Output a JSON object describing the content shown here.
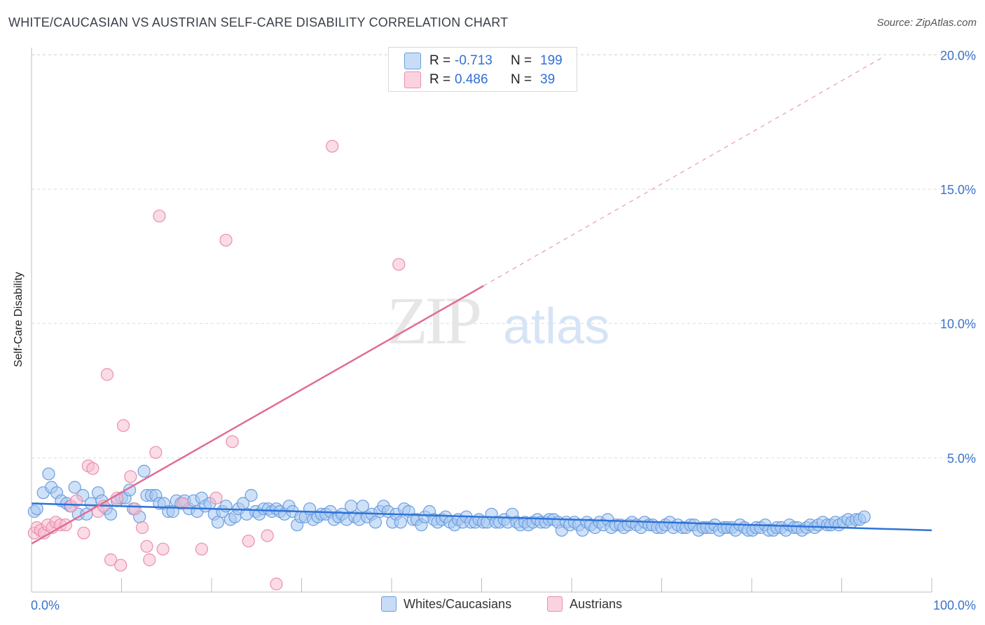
{
  "chart_data": {
    "type": "scatter",
    "title": "WHITE/CAUCASIAN VS AUSTRIAN SELF-CARE DISABILITY CORRELATION CHART",
    "source": "Source: ZipAtlas.com",
    "xlabel": "",
    "ylabel": "Self-Care Disability",
    "xlim": [
      0,
      100
    ],
    "ylim": [
      0,
      21
    ],
    "x_tick_labels": {
      "min": "0.0%",
      "max": "100.0%"
    },
    "y_ticks": [
      5,
      10,
      15,
      20
    ],
    "y_tick_labels": [
      "5.0%",
      "10.0%",
      "15.0%",
      "20.0%"
    ],
    "watermark": {
      "zip": "ZIP",
      "atlas": "atlas"
    },
    "legend": [
      {
        "name": "Whites/Caucasians",
        "r_label": "R =",
        "r": "-0.713",
        "n_label": "N =",
        "n": "199",
        "color": "#a8c8f0",
        "edge": "#6a9ee0"
      },
      {
        "name": "Austrians",
        "r_label": "R =",
        "r": "0.486",
        "n_label": "N =",
        "n": "39",
        "color": "#f7bdd0",
        "edge": "#e890ac"
      }
    ],
    "series": [
      {
        "name": "Whites/Caucasians",
        "color": "#a8c8f0",
        "edge": "#6a9ee0",
        "trend": {
          "x": [
            0,
            100
          ],
          "y": [
            3.3,
            2.3
          ],
          "color": "#2f72d8"
        },
        "points": [
          [
            0.3,
            3.0
          ],
          [
            0.6,
            3.1
          ],
          [
            1.3,
            3.7
          ],
          [
            1.9,
            4.4
          ],
          [
            2.2,
            3.9
          ],
          [
            2.8,
            3.7
          ],
          [
            3.3,
            3.4
          ],
          [
            3.9,
            3.3
          ],
          [
            4.3,
            3.2
          ],
          [
            4.8,
            3.9
          ],
          [
            5.2,
            2.9
          ],
          [
            5.7,
            3.6
          ],
          [
            6.1,
            2.9
          ],
          [
            6.6,
            3.3
          ],
          [
            7.4,
            3.7
          ],
          [
            7.8,
            3.4
          ],
          [
            8.3,
            3.1
          ],
          [
            8.8,
            2.9
          ],
          [
            9.5,
            3.4
          ],
          [
            10.0,
            3.5
          ],
          [
            10.4,
            3.5
          ],
          [
            10.9,
            3.8
          ],
          [
            11.3,
            3.1
          ],
          [
            12.0,
            2.8
          ],
          [
            12.5,
            4.5
          ],
          [
            12.8,
            3.6
          ],
          [
            13.3,
            3.6
          ],
          [
            13.8,
            3.6
          ],
          [
            14.2,
            3.3
          ],
          [
            14.7,
            3.3
          ],
          [
            15.2,
            3.0
          ],
          [
            15.7,
            3.0
          ],
          [
            16.1,
            3.4
          ],
          [
            16.6,
            3.3
          ],
          [
            17.0,
            3.4
          ],
          [
            17.5,
            3.1
          ],
          [
            18.0,
            3.4
          ],
          [
            18.4,
            3.0
          ],
          [
            18.9,
            3.5
          ],
          [
            19.3,
            3.2
          ],
          [
            19.8,
            3.3
          ],
          [
            20.3,
            2.9
          ],
          [
            20.7,
            2.6
          ],
          [
            21.2,
            3.0
          ],
          [
            21.6,
            3.2
          ],
          [
            22.1,
            2.7
          ],
          [
            22.6,
            2.8
          ],
          [
            23.0,
            3.1
          ],
          [
            23.5,
            3.3
          ],
          [
            23.9,
            2.9
          ],
          [
            24.4,
            3.6
          ],
          [
            24.9,
            3.0
          ],
          [
            25.3,
            2.9
          ],
          [
            25.8,
            3.1
          ],
          [
            26.3,
            3.1
          ],
          [
            26.7,
            3.0
          ],
          [
            27.2,
            3.1
          ],
          [
            27.6,
            3.0
          ],
          [
            28.1,
            2.9
          ],
          [
            28.6,
            3.2
          ],
          [
            29.0,
            3.0
          ],
          [
            29.5,
            2.5
          ],
          [
            29.9,
            2.8
          ],
          [
            30.4,
            2.8
          ],
          [
            30.9,
            3.1
          ],
          [
            31.3,
            2.7
          ],
          [
            31.8,
            2.8
          ],
          [
            32.2,
            2.9
          ],
          [
            32.7,
            2.9
          ],
          [
            33.2,
            3.0
          ],
          [
            33.6,
            2.7
          ],
          [
            34.1,
            2.8
          ],
          [
            34.5,
            2.9
          ],
          [
            35.0,
            2.7
          ],
          [
            35.5,
            3.2
          ],
          [
            35.9,
            2.8
          ],
          [
            36.4,
            2.7
          ],
          [
            36.8,
            3.2
          ],
          [
            37.3,
            2.8
          ],
          [
            37.8,
            2.9
          ],
          [
            38.2,
            2.6
          ],
          [
            38.7,
            3.0
          ],
          [
            39.1,
            3.2
          ],
          [
            39.6,
            3.0
          ],
          [
            40.1,
            2.6
          ],
          [
            40.5,
            2.9
          ],
          [
            41.0,
            2.6
          ],
          [
            41.4,
            3.1
          ],
          [
            41.9,
            3.0
          ],
          [
            42.4,
            2.7
          ],
          [
            42.8,
            2.7
          ],
          [
            43.3,
            2.5
          ],
          [
            43.7,
            2.8
          ],
          [
            44.2,
            3.0
          ],
          [
            44.7,
            2.7
          ],
          [
            45.1,
            2.6
          ],
          [
            45.6,
            2.7
          ],
          [
            46.0,
            2.8
          ],
          [
            46.5,
            2.6
          ],
          [
            47.0,
            2.5
          ],
          [
            47.4,
            2.7
          ],
          [
            47.9,
            2.6
          ],
          [
            48.3,
            2.8
          ],
          [
            48.8,
            2.6
          ],
          [
            49.3,
            2.6
          ],
          [
            49.7,
            2.7
          ],
          [
            50.2,
            2.6
          ],
          [
            50.6,
            2.6
          ],
          [
            51.1,
            2.9
          ],
          [
            51.6,
            2.6
          ],
          [
            52.0,
            2.6
          ],
          [
            52.5,
            2.7
          ],
          [
            52.9,
            2.6
          ],
          [
            53.4,
            2.9
          ],
          [
            53.9,
            2.6
          ],
          [
            54.3,
            2.5
          ],
          [
            54.8,
            2.6
          ],
          [
            55.2,
            2.5
          ],
          [
            55.7,
            2.6
          ],
          [
            56.2,
            2.7
          ],
          [
            56.6,
            2.6
          ],
          [
            57.1,
            2.6
          ],
          [
            57.5,
            2.7
          ],
          [
            58.0,
            2.7
          ],
          [
            58.5,
            2.6
          ],
          [
            58.9,
            2.3
          ],
          [
            59.4,
            2.6
          ],
          [
            59.8,
            2.5
          ],
          [
            60.3,
            2.6
          ],
          [
            60.8,
            2.5
          ],
          [
            61.2,
            2.3
          ],
          [
            61.7,
            2.6
          ],
          [
            62.1,
            2.5
          ],
          [
            62.6,
            2.4
          ],
          [
            63.1,
            2.6
          ],
          [
            63.5,
            2.5
          ],
          [
            64.0,
            2.7
          ],
          [
            64.4,
            2.4
          ],
          [
            64.9,
            2.5
          ],
          [
            65.4,
            2.5
          ],
          [
            65.8,
            2.4
          ],
          [
            66.3,
            2.5
          ],
          [
            66.7,
            2.6
          ],
          [
            67.2,
            2.5
          ],
          [
            67.7,
            2.4
          ],
          [
            68.1,
            2.6
          ],
          [
            68.6,
            2.5
          ],
          [
            69.0,
            2.5
          ],
          [
            69.5,
            2.4
          ],
          [
            70.0,
            2.4
          ],
          [
            70.4,
            2.5
          ],
          [
            70.9,
            2.6
          ],
          [
            71.3,
            2.4
          ],
          [
            71.8,
            2.5
          ],
          [
            72.3,
            2.4
          ],
          [
            72.7,
            2.4
          ],
          [
            73.2,
            2.5
          ],
          [
            73.6,
            2.5
          ],
          [
            74.1,
            2.3
          ],
          [
            74.6,
            2.4
          ],
          [
            75.0,
            2.4
          ],
          [
            75.5,
            2.4
          ],
          [
            75.9,
            2.5
          ],
          [
            76.4,
            2.3
          ],
          [
            76.9,
            2.4
          ],
          [
            77.3,
            2.4
          ],
          [
            77.8,
            2.4
          ],
          [
            78.2,
            2.3
          ],
          [
            78.7,
            2.5
          ],
          [
            79.2,
            2.4
          ],
          [
            79.6,
            2.3
          ],
          [
            80.1,
            2.3
          ],
          [
            80.5,
            2.4
          ],
          [
            81.0,
            2.4
          ],
          [
            81.5,
            2.5
          ],
          [
            81.9,
            2.3
          ],
          [
            82.4,
            2.3
          ],
          [
            82.8,
            2.4
          ],
          [
            83.3,
            2.4
          ],
          [
            83.8,
            2.3
          ],
          [
            84.2,
            2.5
          ],
          [
            84.7,
            2.4
          ],
          [
            85.1,
            2.4
          ],
          [
            85.6,
            2.3
          ],
          [
            86.1,
            2.4
          ],
          [
            86.5,
            2.5
          ],
          [
            87.0,
            2.4
          ],
          [
            87.4,
            2.5
          ],
          [
            87.9,
            2.6
          ],
          [
            88.4,
            2.5
          ],
          [
            88.8,
            2.5
          ],
          [
            89.3,
            2.6
          ],
          [
            89.7,
            2.5
          ],
          [
            90.2,
            2.6
          ],
          [
            90.7,
            2.7
          ],
          [
            91.1,
            2.6
          ],
          [
            91.6,
            2.7
          ],
          [
            92.0,
            2.7
          ],
          [
            92.5,
            2.8
          ]
        ]
      },
      {
        "name": "Austrians",
        "color": "#f7bdd0",
        "edge": "#e890ac",
        "trend": {
          "x": [
            0,
            50.2
          ],
          "y": [
            1.8,
            11.4
          ],
          "dash_to": [
            94.5,
            19.9
          ],
          "color": "#e06d97"
        },
        "points": [
          [
            0.3,
            2.2
          ],
          [
            0.6,
            2.4
          ],
          [
            1.0,
            2.3
          ],
          [
            1.4,
            2.2
          ],
          [
            1.8,
            2.5
          ],
          [
            2.3,
            2.4
          ],
          [
            2.7,
            2.6
          ],
          [
            3.2,
            2.5
          ],
          [
            3.8,
            2.5
          ],
          [
            4.4,
            3.2
          ],
          [
            5.0,
            3.4
          ],
          [
            5.8,
            2.2
          ],
          [
            6.3,
            4.7
          ],
          [
            6.8,
            4.6
          ],
          [
            7.4,
            3.0
          ],
          [
            8.0,
            3.2
          ],
          [
            8.4,
            8.1
          ],
          [
            8.8,
            1.2
          ],
          [
            9.5,
            3.5
          ],
          [
            9.9,
            1.0
          ],
          [
            10.2,
            6.2
          ],
          [
            11.0,
            4.3
          ],
          [
            11.5,
            3.1
          ],
          [
            12.3,
            2.4
          ],
          [
            12.8,
            1.7
          ],
          [
            13.1,
            1.2
          ],
          [
            13.8,
            5.2
          ],
          [
            14.2,
            14.0
          ],
          [
            14.6,
            1.6
          ],
          [
            16.8,
            3.3
          ],
          [
            18.9,
            1.6
          ],
          [
            20.5,
            3.5
          ],
          [
            21.6,
            13.1
          ],
          [
            22.3,
            5.6
          ],
          [
            24.1,
            1.9
          ],
          [
            26.2,
            2.1
          ],
          [
            27.2,
            0.3
          ],
          [
            33.4,
            16.6
          ],
          [
            40.8,
            12.2
          ]
        ]
      }
    ]
  }
}
